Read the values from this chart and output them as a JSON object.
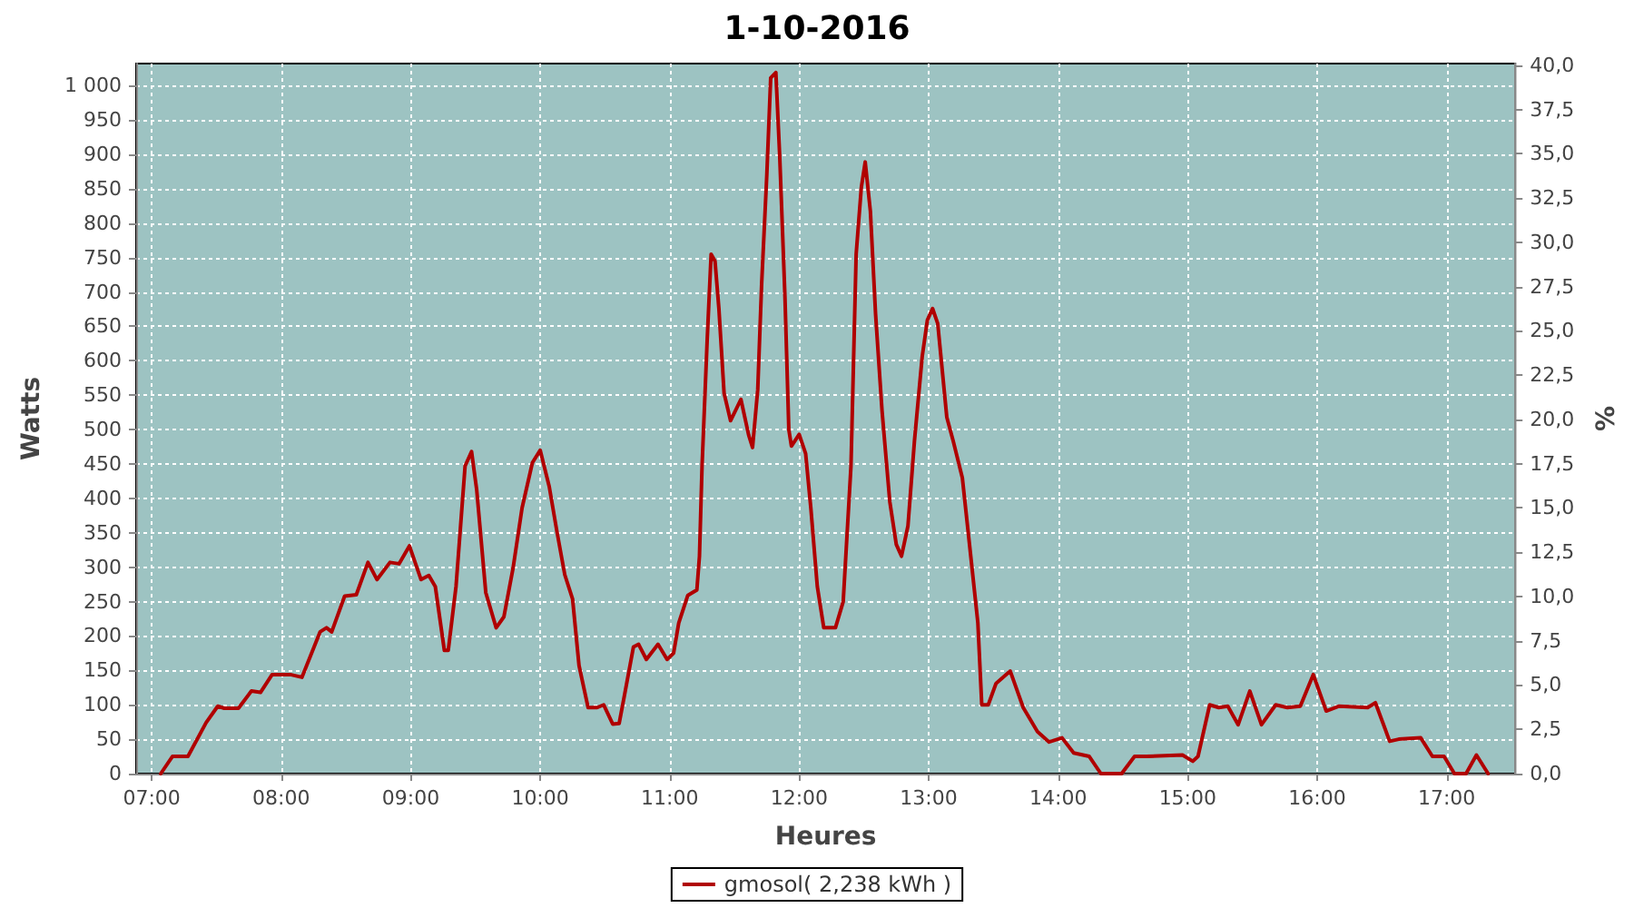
{
  "chart_data": {
    "type": "line",
    "title": "1-10-2016",
    "xlabel": "Heures",
    "ylabel": "Watts",
    "y2label": "%",
    "x": [
      7.07,
      7.16,
      7.28,
      7.42,
      7.51,
      7.56,
      7.67,
      7.77,
      7.84,
      7.93,
      8.07,
      8.16,
      8.3,
      8.35,
      8.39,
      8.49,
      8.58,
      8.67,
      8.74,
      8.84,
      8.91,
      8.99,
      9.08,
      9.14,
      9.19,
      9.26,
      9.29,
      9.35,
      9.42,
      9.47,
      9.51,
      9.58,
      9.66,
      9.72,
      9.79,
      9.86,
      9.94,
      10.0,
      10.07,
      10.13,
      10.19,
      10.25,
      10.3,
      10.37,
      10.44,
      10.49,
      10.56,
      10.61,
      10.65,
      10.72,
      10.76,
      10.82,
      10.91,
      10.98,
      11.03,
      11.07,
      11.14,
      11.21,
      11.23,
      11.25,
      11.29,
      11.32,
      11.35,
      11.38,
      11.42,
      11.47,
      11.55,
      11.61,
      11.64,
      11.68,
      11.71,
      11.75,
      11.78,
      11.82,
      11.85,
      11.89,
      11.92,
      11.94,
      12.0,
      12.05,
      12.09,
      12.14,
      12.19,
      12.28,
      12.34,
      12.4,
      12.44,
      12.48,
      12.51,
      12.55,
      12.59,
      12.64,
      12.7,
      12.75,
      12.79,
      12.84,
      12.89,
      12.95,
      12.99,
      13.03,
      13.07,
      13.14,
      13.19,
      13.26,
      13.3,
      13.38,
      13.41,
      13.46,
      13.52,
      13.63,
      13.73,
      13.84,
      13.93,
      14.03,
      14.12,
      14.24,
      14.33,
      14.49,
      14.59,
      14.68,
      14.96,
      15.04,
      15.08,
      15.17,
      15.24,
      15.31,
      15.39,
      15.48,
      15.57,
      15.68,
      15.77,
      15.87,
      15.97,
      16.07,
      16.17,
      16.39,
      16.45,
      16.56,
      16.63,
      16.8,
      16.89,
      16.98,
      17.06,
      17.15,
      17.23,
      17.32
    ],
    "series": [
      {
        "name": "gmosol( 2,238 kWh )",
        "color": "#b00000",
        "values": [
          0,
          25,
          25,
          74,
          98,
          95,
          95,
          120,
          118,
          144,
          144,
          140,
          206,
          212,
          206,
          258,
          260,
          307,
          282,
          307,
          305,
          331,
          282,
          288,
          272,
          179,
          179,
          272,
          447,
          468,
          412,
          263,
          212,
          228,
          298,
          386,
          452,
          470,
          417,
          351,
          289,
          254,
          157,
          96,
          96,
          100,
          72,
          73,
          113,
          184,
          188,
          166,
          188,
          166,
          175,
          219,
          259,
          267,
          316,
          447,
          632,
          755,
          745,
          676,
          553,
          513,
          544,
          492,
          474,
          558,
          711,
          870,
          1011,
          1019,
          896,
          694,
          500,
          476,
          493,
          465,
          386,
          272,
          212,
          212,
          250,
          447,
          755,
          852,
          889,
          817,
          668,
          527,
          395,
          333,
          316,
          360,
          483,
          606,
          659,
          676,
          654,
          518,
          483,
          430,
          360,
          219,
          100,
          100,
          131,
          149,
          96,
          61,
          46,
          52,
          30,
          25,
          0,
          0,
          25,
          25,
          27,
          18,
          25,
          100,
          96,
          98,
          71,
          120,
          71,
          100,
          96,
          98,
          144,
          91,
          98,
          96,
          103,
          47,
          50,
          52,
          25,
          25,
          0,
          0,
          27,
          0
        ]
      }
    ],
    "xlim": [
      6.88,
      17.53
    ],
    "xticks": [
      {
        "value": 7,
        "label": "07:00"
      },
      {
        "value": 8,
        "label": "08:00"
      },
      {
        "value": 9,
        "label": "09:00"
      },
      {
        "value": 10,
        "label": "10:00"
      },
      {
        "value": 11,
        "label": "11:00"
      },
      {
        "value": 12,
        "label": "12:00"
      },
      {
        "value": 13,
        "label": "13:00"
      },
      {
        "value": 14,
        "label": "14:00"
      },
      {
        "value": 15,
        "label": "15:00"
      },
      {
        "value": 16,
        "label": "16:00"
      },
      {
        "value": 17,
        "label": "17:00"
      }
    ],
    "ylim": [
      0,
      1032
    ],
    "yticks": [
      0,
      50,
      100,
      150,
      200,
      250,
      300,
      350,
      400,
      450,
      500,
      550,
      600,
      650,
      700,
      750,
      800,
      850,
      900,
      950,
      {
        "value": 1000,
        "label": "1 000"
      }
    ],
    "y2lim": [
      0,
      40.1
    ],
    "y2ticks": [
      {
        "value": 0,
        "label": "0,0"
      },
      {
        "value": 2.5,
        "label": "2,5"
      },
      {
        "value": 5,
        "label": "5,0"
      },
      {
        "value": 7.5,
        "label": "7,5"
      },
      {
        "value": 10,
        "label": "10,0"
      },
      {
        "value": 12.5,
        "label": "12,5"
      },
      {
        "value": 15,
        "label": "15,0"
      },
      {
        "value": 17.5,
        "label": "17,5"
      },
      {
        "value": 20,
        "label": "20,0"
      },
      {
        "value": 22.5,
        "label": "22,5"
      },
      {
        "value": 25,
        "label": "25,0"
      },
      {
        "value": 27.5,
        "label": "27,5"
      },
      {
        "value": 30,
        "label": "30,0"
      },
      {
        "value": 32.5,
        "label": "32,5"
      },
      {
        "value": 35,
        "label": "35,0"
      },
      {
        "value": 37.5,
        "label": "37,5"
      },
      {
        "value": 40,
        "label": "40,0"
      }
    ],
    "grid": true,
    "legend": "bottom",
    "marker": "none",
    "line_style": "solid"
  }
}
